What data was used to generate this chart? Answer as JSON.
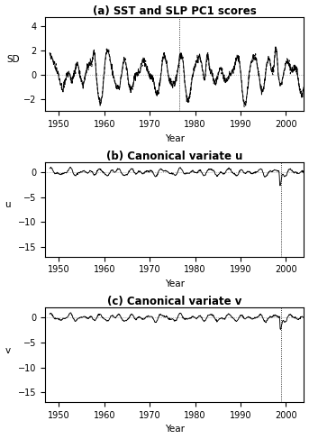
{
  "title_a": "(a) SST and SLP PC1 scores",
  "title_b": "(b) Canonical variate u",
  "title_c": "(c) Canonical variate v",
  "xlabel": "Year",
  "ylabel_a": "SD",
  "ylabel_b": "u",
  "ylabel_c": "v",
  "year_start": 1948,
  "year_end": 2004,
  "ylim_a": [
    -3.0,
    4.8
  ],
  "ylim_b": [
    -17,
    2
  ],
  "ylim_c": [
    -17,
    2
  ],
  "yticks_a": [
    -2,
    0,
    2,
    4
  ],
  "yticks_b": [
    -15,
    -10,
    -5,
    0
  ],
  "yticks_c": [
    -15,
    -10,
    -5,
    0
  ],
  "xticks": [
    1950,
    1960,
    1970,
    1980,
    1990,
    2000
  ],
  "vline_a_x": 1976.5,
  "vline_bc_x": 1999.0,
  "background_color": "#ffffff",
  "line_color": "#000000",
  "figsize": [
    3.43,
    4.87
  ],
  "dpi": 100
}
